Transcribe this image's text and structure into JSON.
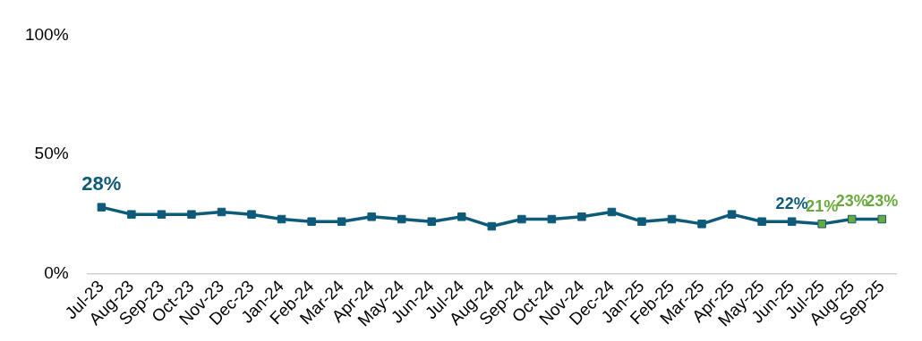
{
  "chart_data": {
    "type": "line",
    "categories": [
      "Jul-23",
      "Aug-23",
      "Sep-23",
      "Oct-23",
      "Nov-23",
      "Dec-23",
      "Jan-24",
      "Feb-24",
      "Mar-24",
      "Apr-24",
      "May-24",
      "Jun-24",
      "Jul-24",
      "Aug-24",
      "Sep-24",
      "Oct-24",
      "Nov-24",
      "Dec-24",
      "Jan-25",
      "Feb-25",
      "Mar-25",
      "Apr-25",
      "May-25",
      "Jun-25",
      "Jul-25",
      "Aug-25",
      "Sep-25"
    ],
    "series": [
      {
        "color": "#0e5a7a",
        "values": [
          28,
          25,
          25,
          25,
          26,
          25,
          23,
          22,
          22,
          24,
          23,
          22,
          24,
          20,
          23,
          23,
          24,
          26,
          22,
          23,
          21,
          25,
          22,
          22,
          21,
          23,
          23
        ],
        "colors": [
          "#0e5a7a",
          "#0e5a7a",
          "#0e5a7a",
          "#0e5a7a",
          "#0e5a7a",
          "#0e5a7a",
          "#0e5a7a",
          "#0e5a7a",
          "#0e5a7a",
          "#0e5a7a",
          "#0e5a7a",
          "#0e5a7a",
          "#0e5a7a",
          "#0e5a7a",
          "#0e5a7a",
          "#0e5a7a",
          "#0e5a7a",
          "#0e5a7a",
          "#0e5a7a",
          "#0e5a7a",
          "#0e5a7a",
          "#0e5a7a",
          "#0e5a7a",
          "#0e5a7a",
          "#6aaa3c",
          "#6aaa3c",
          "#6aaa3c"
        ],
        "value_labels": [
          "28%",
          null,
          null,
          null,
          null,
          null,
          null,
          null,
          null,
          null,
          null,
          null,
          null,
          null,
          null,
          null,
          null,
          null,
          null,
          null,
          null,
          null,
          null,
          "22%",
          "21%",
          "23%",
          "23%"
        ]
      }
    ],
    "ylim": [
      0,
      100
    ],
    "yticks": [
      {
        "value": 0,
        "label": "0%"
      },
      {
        "value": 50,
        "label": "50%"
      },
      {
        "value": 100,
        "label": "100%"
      }
    ],
    "grid": false,
    "legend": false,
    "marker": "square",
    "line_style": "solid"
  }
}
